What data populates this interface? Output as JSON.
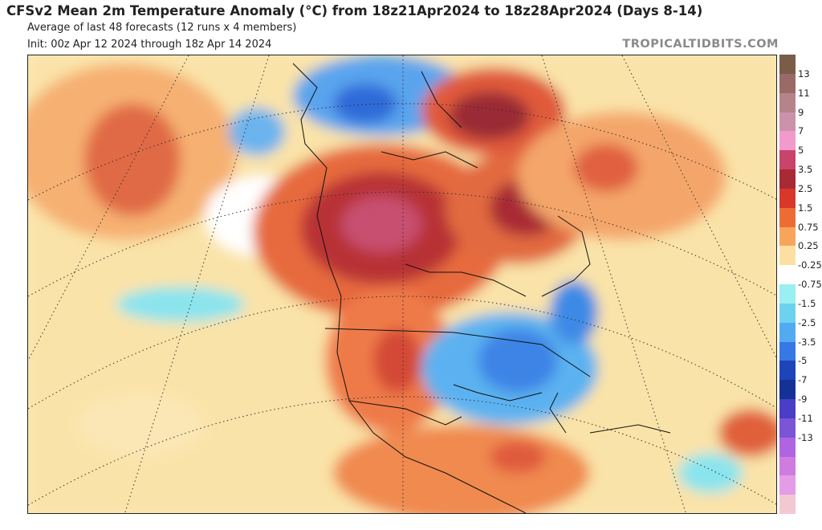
{
  "header": {
    "title": "CFSv2 Mean 2m Temperature Anomaly (°C) from 18z21Apr2024 to 18z28Apr2024 (Days 8-14)",
    "subtitle": "Average of last 48 forecasts (12 runs x 4 members)",
    "init": "Init: 00z Apr 12 2024 through 18z Apr 14 2024",
    "brand": "TROPICALTIDBITS.COM"
  },
  "colorbar": {
    "colors": [
      "#7a5c48",
      "#9a6a66",
      "#b4848a",
      "#cc92aa",
      "#f29acc",
      "#c8446a",
      "#a82a34",
      "#d8382a",
      "#ec6c34",
      "#f8a55c",
      "#fce0a2",
      "#ffffff",
      "#9aeff0",
      "#6cd2f0",
      "#52aaf0",
      "#3678e6",
      "#1e44ba",
      "#143296",
      "#4a3ec6",
      "#7a55d6",
      "#b064e2",
      "#cf7cde",
      "#e49ce6",
      "#f4c8d2"
    ],
    "labels": [
      "13",
      "11",
      "9",
      "7",
      "5",
      "3.5",
      "2.5",
      "1.5",
      "0.75",
      "0.25",
      "-0.25",
      "-0.75",
      "-1.5",
      "-2.5",
      "-3.5",
      "-5",
      "-7",
      "-9",
      "-11",
      "-13"
    ]
  }
}
